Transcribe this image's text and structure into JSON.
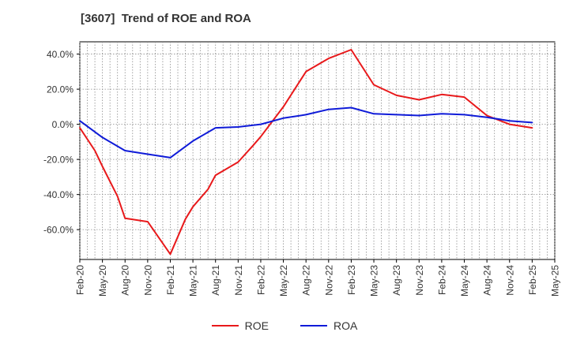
{
  "chart_data": {
    "type": "line",
    "title": "[3607]  Trend of ROE and ROA",
    "xlabel": "",
    "ylabel": "",
    "ylim": [
      -77,
      47
    ],
    "yticks": [
      40,
      20,
      0,
      -20,
      -40,
      -60
    ],
    "ytick_labels": [
      "40.0%",
      "20.0%",
      "0.0%",
      "-20.0%",
      "-40.0%",
      "-60.0%"
    ],
    "xtick_labels": [
      "Feb-20",
      "May-20",
      "Aug-20",
      "Nov-20",
      "Feb-21",
      "May-21",
      "Aug-21",
      "Nov-21",
      "Feb-22",
      "May-22",
      "Aug-22",
      "Nov-22",
      "Feb-23",
      "May-23",
      "Aug-23",
      "Nov-23",
      "Feb-24",
      "May-24",
      "Aug-24",
      "Nov-24",
      "Feb-25",
      "May-25"
    ],
    "grid": true,
    "legend_position": "bottom",
    "series": [
      {
        "name": "ROE",
        "color": "#e8191b",
        "points": [
          [
            "Feb-20",
            -2.0
          ],
          [
            "Apr-20",
            -15.0
          ],
          [
            "May-20",
            -24.0
          ],
          [
            "Jul-20",
            -41.0
          ],
          [
            "Aug-20",
            -53.5
          ],
          [
            "Nov-20",
            -55.5
          ],
          [
            "Feb-21",
            -74.0
          ],
          [
            "Apr-21",
            -54.0
          ],
          [
            "May-21",
            -47.0
          ],
          [
            "Jul-21",
            -37.0
          ],
          [
            "Aug-21",
            -29.0
          ],
          [
            "Nov-21",
            -21.5
          ],
          [
            "Jan-22",
            -12.0
          ],
          [
            "Feb-22",
            -7.0
          ],
          [
            "May-22",
            10.0
          ],
          [
            "Aug-22",
            30.0
          ],
          [
            "Nov-22",
            37.5
          ],
          [
            "Feb-23",
            42.5
          ],
          [
            "May-23",
            22.5
          ],
          [
            "Aug-23",
            16.5
          ],
          [
            "Nov-23",
            14.0
          ],
          [
            "Feb-24",
            17.0
          ],
          [
            "May-24",
            15.5
          ],
          [
            "Aug-24",
            5.0
          ],
          [
            "Nov-24",
            0.0
          ],
          [
            "Feb-25",
            -2.0
          ]
        ]
      },
      {
        "name": "ROA",
        "color": "#0f1bd8",
        "points": [
          [
            "Feb-20",
            2.0
          ],
          [
            "May-20",
            -7.5
          ],
          [
            "Aug-20",
            -15.0
          ],
          [
            "Nov-20",
            -17.0
          ],
          [
            "Feb-21",
            -19.0
          ],
          [
            "May-21",
            -9.5
          ],
          [
            "Aug-21",
            -2.0
          ],
          [
            "Nov-21",
            -1.5
          ],
          [
            "Feb-22",
            0.0
          ],
          [
            "May-22",
            3.5
          ],
          [
            "Aug-22",
            5.5
          ],
          [
            "Nov-22",
            8.5
          ],
          [
            "Feb-23",
            9.5
          ],
          [
            "May-23",
            6.0
          ],
          [
            "Aug-23",
            5.5
          ],
          [
            "Nov-23",
            5.0
          ],
          [
            "Feb-24",
            6.0
          ],
          [
            "May-24",
            5.5
          ],
          [
            "Aug-24",
            4.0
          ],
          [
            "Nov-24",
            2.0
          ],
          [
            "Feb-25",
            1.0
          ]
        ]
      }
    ]
  }
}
